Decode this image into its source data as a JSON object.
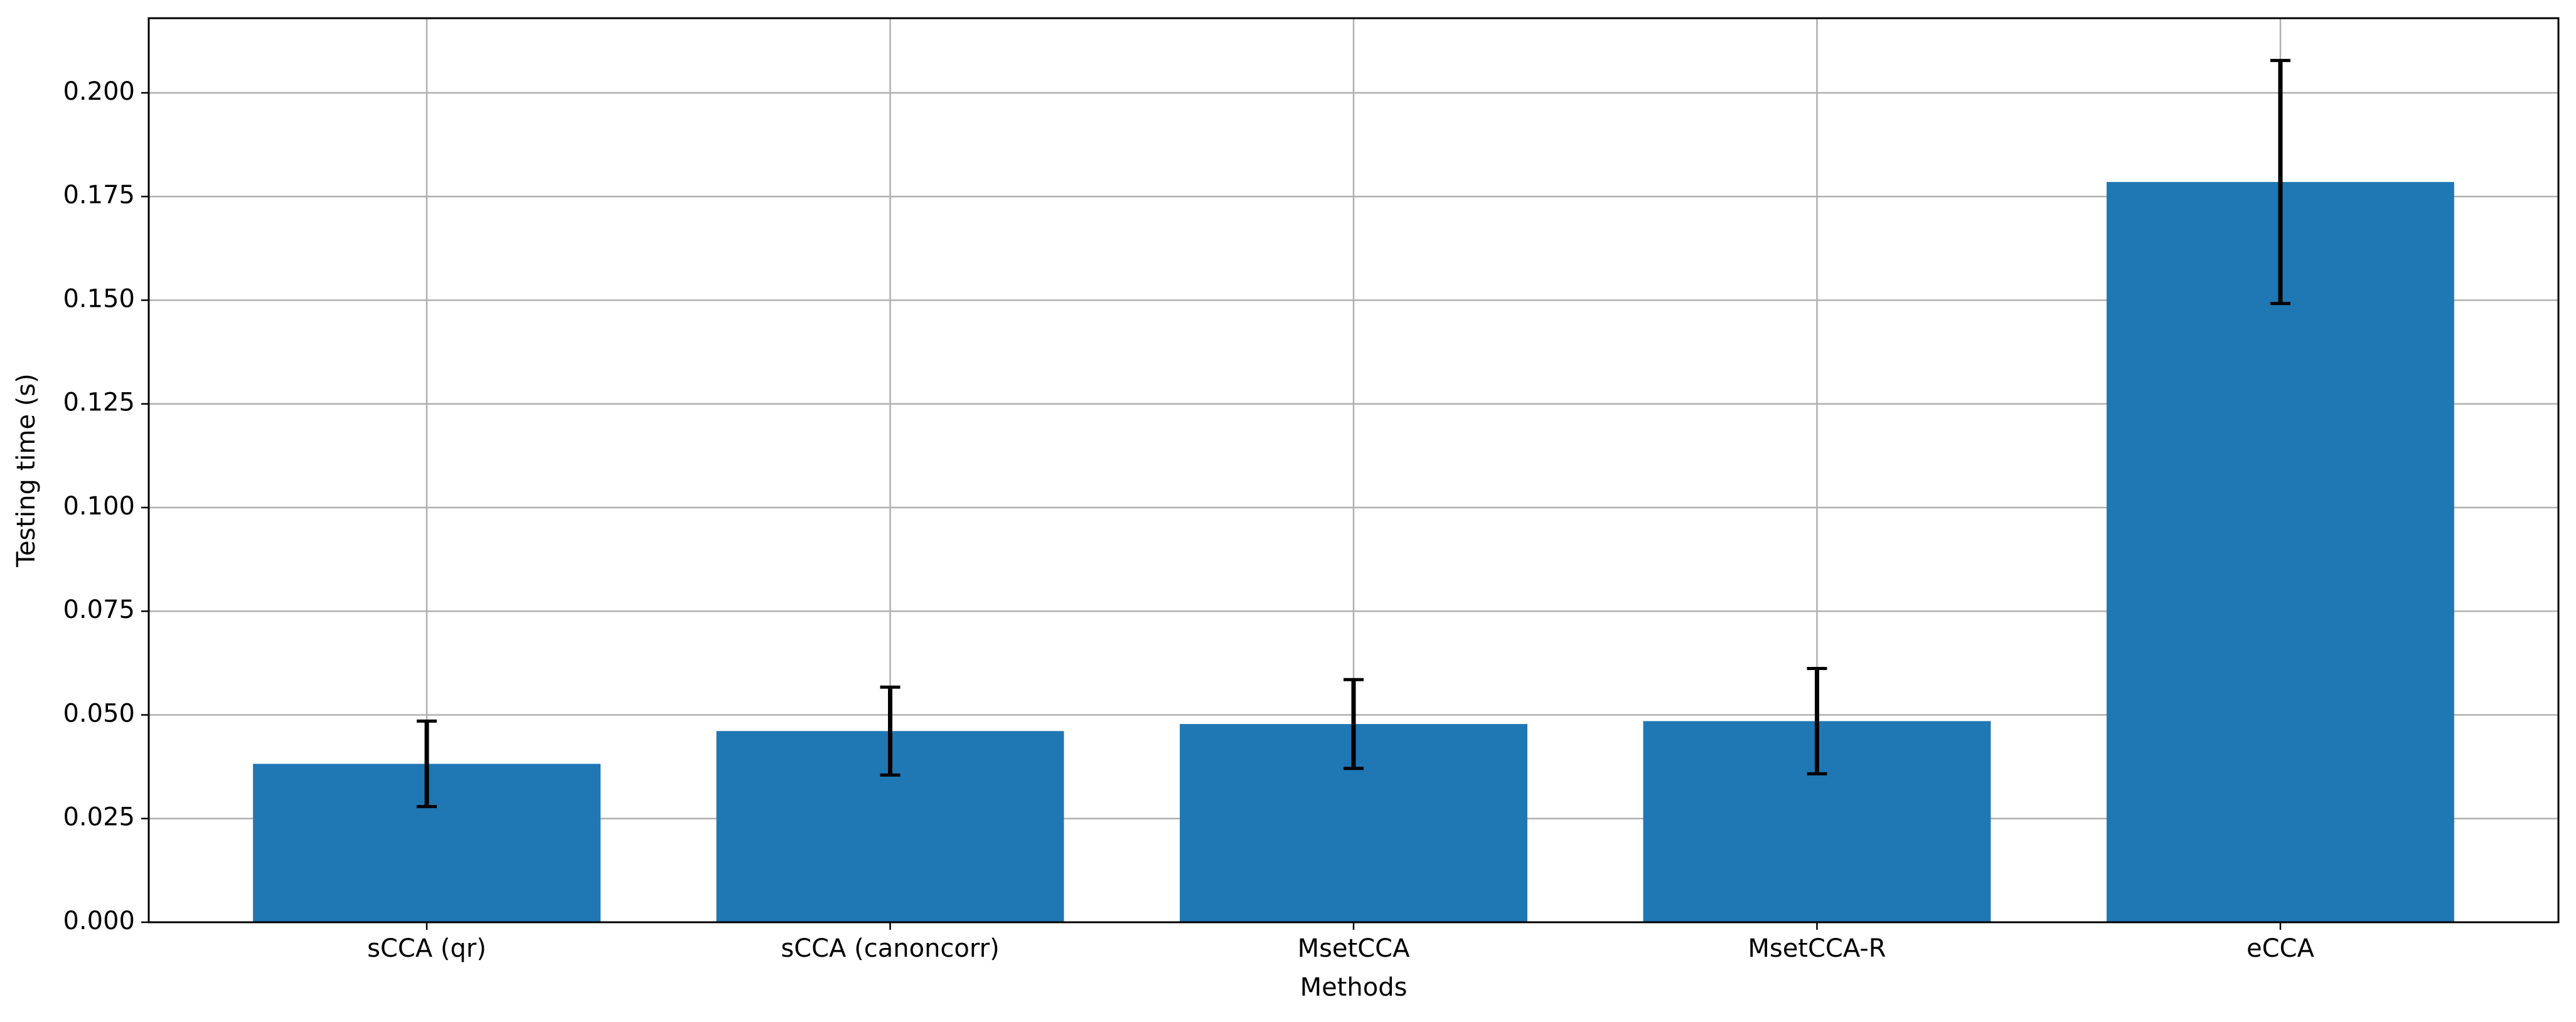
{
  "chart_data": {
    "type": "bar",
    "title": "",
    "xlabel": "Methods",
    "ylabel": "Testing time (s)",
    "categories": [
      "sCCA (qr)",
      "sCCA (canoncorr)",
      "MsetCCA",
      "MsetCCA-R",
      "eCCA"
    ],
    "values": [
      0.0382,
      0.0461,
      0.0478,
      0.0485,
      0.1785
    ],
    "errors": [
      0.0103,
      0.0106,
      0.0107,
      0.0127,
      0.0293
    ],
    "ylim": [
      0,
      0.218
    ],
    "yticks": [
      0.0,
      0.025,
      0.05,
      0.075,
      0.1,
      0.125,
      0.15,
      0.175,
      0.2
    ],
    "ytick_labels": [
      "0.000",
      "0.025",
      "0.050",
      "0.075",
      "0.100",
      "0.125",
      "0.150",
      "0.175",
      "0.200"
    ],
    "grid": true,
    "colors": {
      "bar": "#1f77b4",
      "error": "#000000",
      "grid": "#b0b0b0",
      "axes": "#000000"
    }
  }
}
